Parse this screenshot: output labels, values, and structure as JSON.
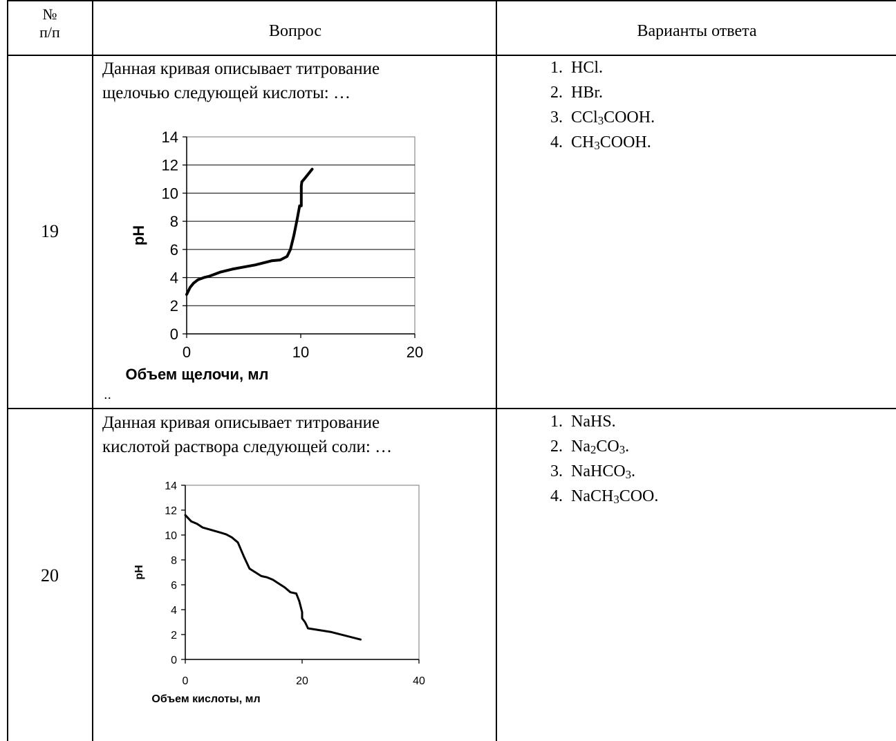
{
  "header": {
    "num": "№ п/п",
    "num_line1": "№",
    "num_line2": "п/п",
    "question": "Вопрос",
    "answers": "Варианты ответа"
  },
  "rows": [
    {
      "number": "19",
      "question": "Данная кривая описывает титрование щелочью следующей кислоты: …",
      "question_line1": "Данная кривая описывает титрование",
      "question_line2": "щелочью следующей кислоты: …",
      "trailing_text": "..",
      "answers": [
        {
          "pre": "HCl.",
          "sub": "",
          "post": ""
        },
        {
          "pre": "HBr.",
          "sub": "",
          "post": ""
        },
        {
          "pre": "CCl",
          "sub": "3",
          "post": "COOH."
        },
        {
          "pre": "CH",
          "sub": "3",
          "post": "COOH."
        }
      ]
    },
    {
      "number": "20",
      "question": "Данная кривая описывает титрование кислотой раствора следующей соли: …",
      "question_line1": "Данная кривая описывает титрование",
      "question_line2": "кислотой раствора следующей соли: …",
      "answers": [
        {
          "pre": "NaHS.",
          "sub": "",
          "post": ""
        },
        {
          "pre": "Na",
          "sub": "2",
          "post": "CO",
          "sub2": "3",
          "post2": "."
        },
        {
          "pre": "NaHCO",
          "sub": "3",
          "post": "."
        },
        {
          "pre": "NaCH",
          "sub": "3",
          "post": "COO."
        }
      ]
    }
  ],
  "chart_data": [
    {
      "type": "line",
      "xlabel": "Объем щелочи, мл",
      "ylabel": "pH",
      "xlim": [
        0,
        20
      ],
      "ylim": [
        0,
        14
      ],
      "xticks": [
        0,
        10,
        20
      ],
      "yticks": [
        0,
        2,
        4,
        6,
        8,
        10,
        12,
        14
      ],
      "grid": "horizontal",
      "series": [
        {
          "x": [
            0,
            0.3,
            0.6,
            1,
            1.5,
            2,
            3,
            4,
            5,
            6,
            7,
            7.5,
            8.2,
            8.8,
            9.1,
            9.4,
            9.7,
            9.9,
            10.05,
            10.05,
            10.1,
            10.3,
            11
          ],
          "y": [
            2.8,
            3.3,
            3.6,
            3.85,
            4.0,
            4.1,
            4.4,
            4.6,
            4.75,
            4.9,
            5.1,
            5.2,
            5.25,
            5.5,
            6.0,
            7.0,
            8.2,
            9.1,
            9.1,
            10.5,
            10.8,
            11.0,
            11.7
          ]
        }
      ]
    },
    {
      "type": "line",
      "xlabel": "Объем кислоты, мл",
      "ylabel": "pH",
      "xlim": [
        0,
        40
      ],
      "ylim": [
        0,
        14
      ],
      "xticks": [
        0,
        20,
        40
      ],
      "yticks": [
        0,
        2,
        4,
        6,
        8,
        10,
        12,
        14
      ],
      "grid": "none",
      "series": [
        {
          "x": [
            0,
            1,
            2,
            3,
            4.5,
            6,
            7,
            8,
            9,
            10,
            11,
            12,
            13,
            14,
            15,
            16,
            17,
            18,
            19,
            19.5,
            20,
            20,
            20.5,
            21,
            25,
            30
          ],
          "y": [
            11.6,
            11.1,
            10.9,
            10.6,
            10.4,
            10.2,
            10.05,
            9.8,
            9.4,
            8.3,
            7.3,
            7.0,
            6.7,
            6.6,
            6.4,
            6.1,
            5.8,
            5.4,
            5.3,
            4.7,
            3.8,
            3.3,
            3.0,
            2.5,
            2.2,
            1.6
          ]
        }
      ]
    }
  ]
}
